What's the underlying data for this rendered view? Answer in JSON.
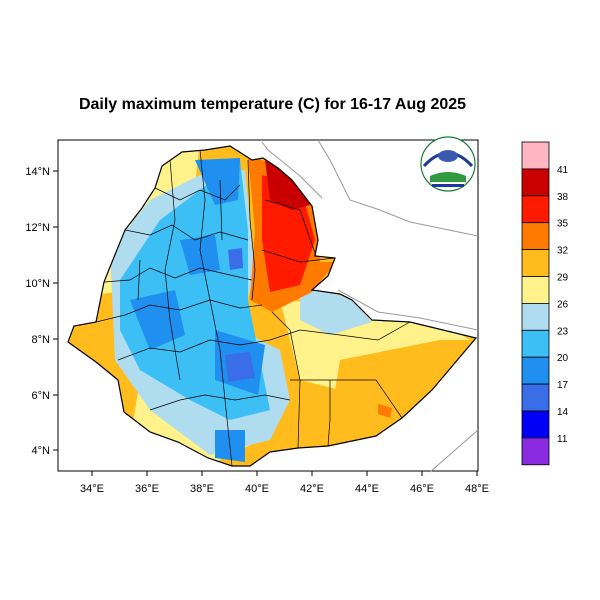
{
  "title": "Daily maximum temperature (C) for 16-17 Aug 2025",
  "lon_ticks": [
    "34°E",
    "36°E",
    "38°E",
    "40°E",
    "42°E",
    "44°E",
    "46°E",
    "48°E"
  ],
  "lat_ticks": [
    "14°N",
    "12°N",
    "10°N",
    "8°N",
    "6°N",
    "4°N"
  ],
  "colorbar": {
    "labels": [
      "41",
      "38",
      "35",
      "32",
      "29",
      "26",
      "23",
      "20",
      "17",
      "14",
      "11"
    ],
    "colors": [
      "#ffb6c1",
      "#c80000",
      "#ff1a00",
      "#ff7a00",
      "#ffbc1c",
      "#fff28a",
      "#b0dcf0",
      "#3bbff5",
      "#1f8ff0",
      "#3a6ee8",
      "#0000f5",
      "#8a2be2"
    ]
  },
  "logo": {
    "name": "ethiopian-meteorology-logo-icon"
  }
}
